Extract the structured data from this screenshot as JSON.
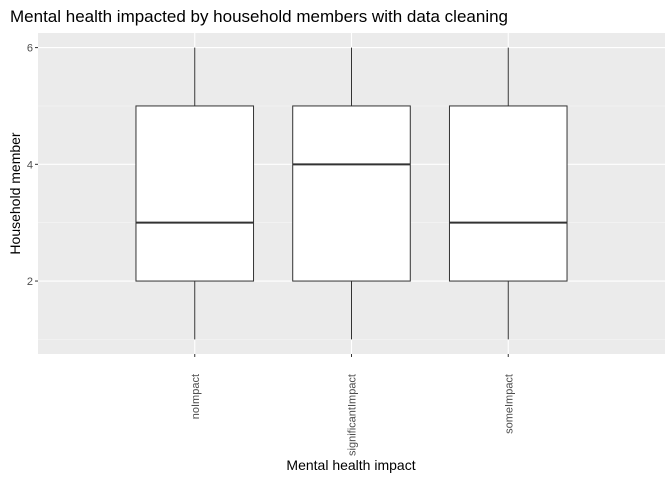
{
  "chart_data": {
    "type": "boxplot",
    "title": "Mental health impacted by household members with data cleaning",
    "xlabel": "Mental health impact",
    "ylabel": "Household member",
    "categories": [
      "noImpact",
      "significantImpact",
      "someImpact"
    ],
    "boxes": [
      {
        "category": "noImpact",
        "min": 1,
        "q1": 2,
        "median": 3,
        "q3": 5,
        "max": 6
      },
      {
        "category": "significantImpact",
        "min": 1,
        "q1": 2,
        "median": 4,
        "q3": 5,
        "max": 6
      },
      {
        "category": "someImpact",
        "min": 1,
        "q1": 2,
        "median": 3,
        "q3": 5,
        "max": 6
      }
    ],
    "yticks": [
      2,
      4,
      6
    ],
    "ylim": [
      0.75,
      6.25
    ],
    "grid": true,
    "colors": {
      "panel_background": "#ebebeb",
      "grid_major": "#ffffff",
      "grid_minor": "#f5f5f5",
      "box_fill": "#ffffff",
      "box_stroke": "#333333",
      "tick_label": "#4d4d4d"
    }
  }
}
